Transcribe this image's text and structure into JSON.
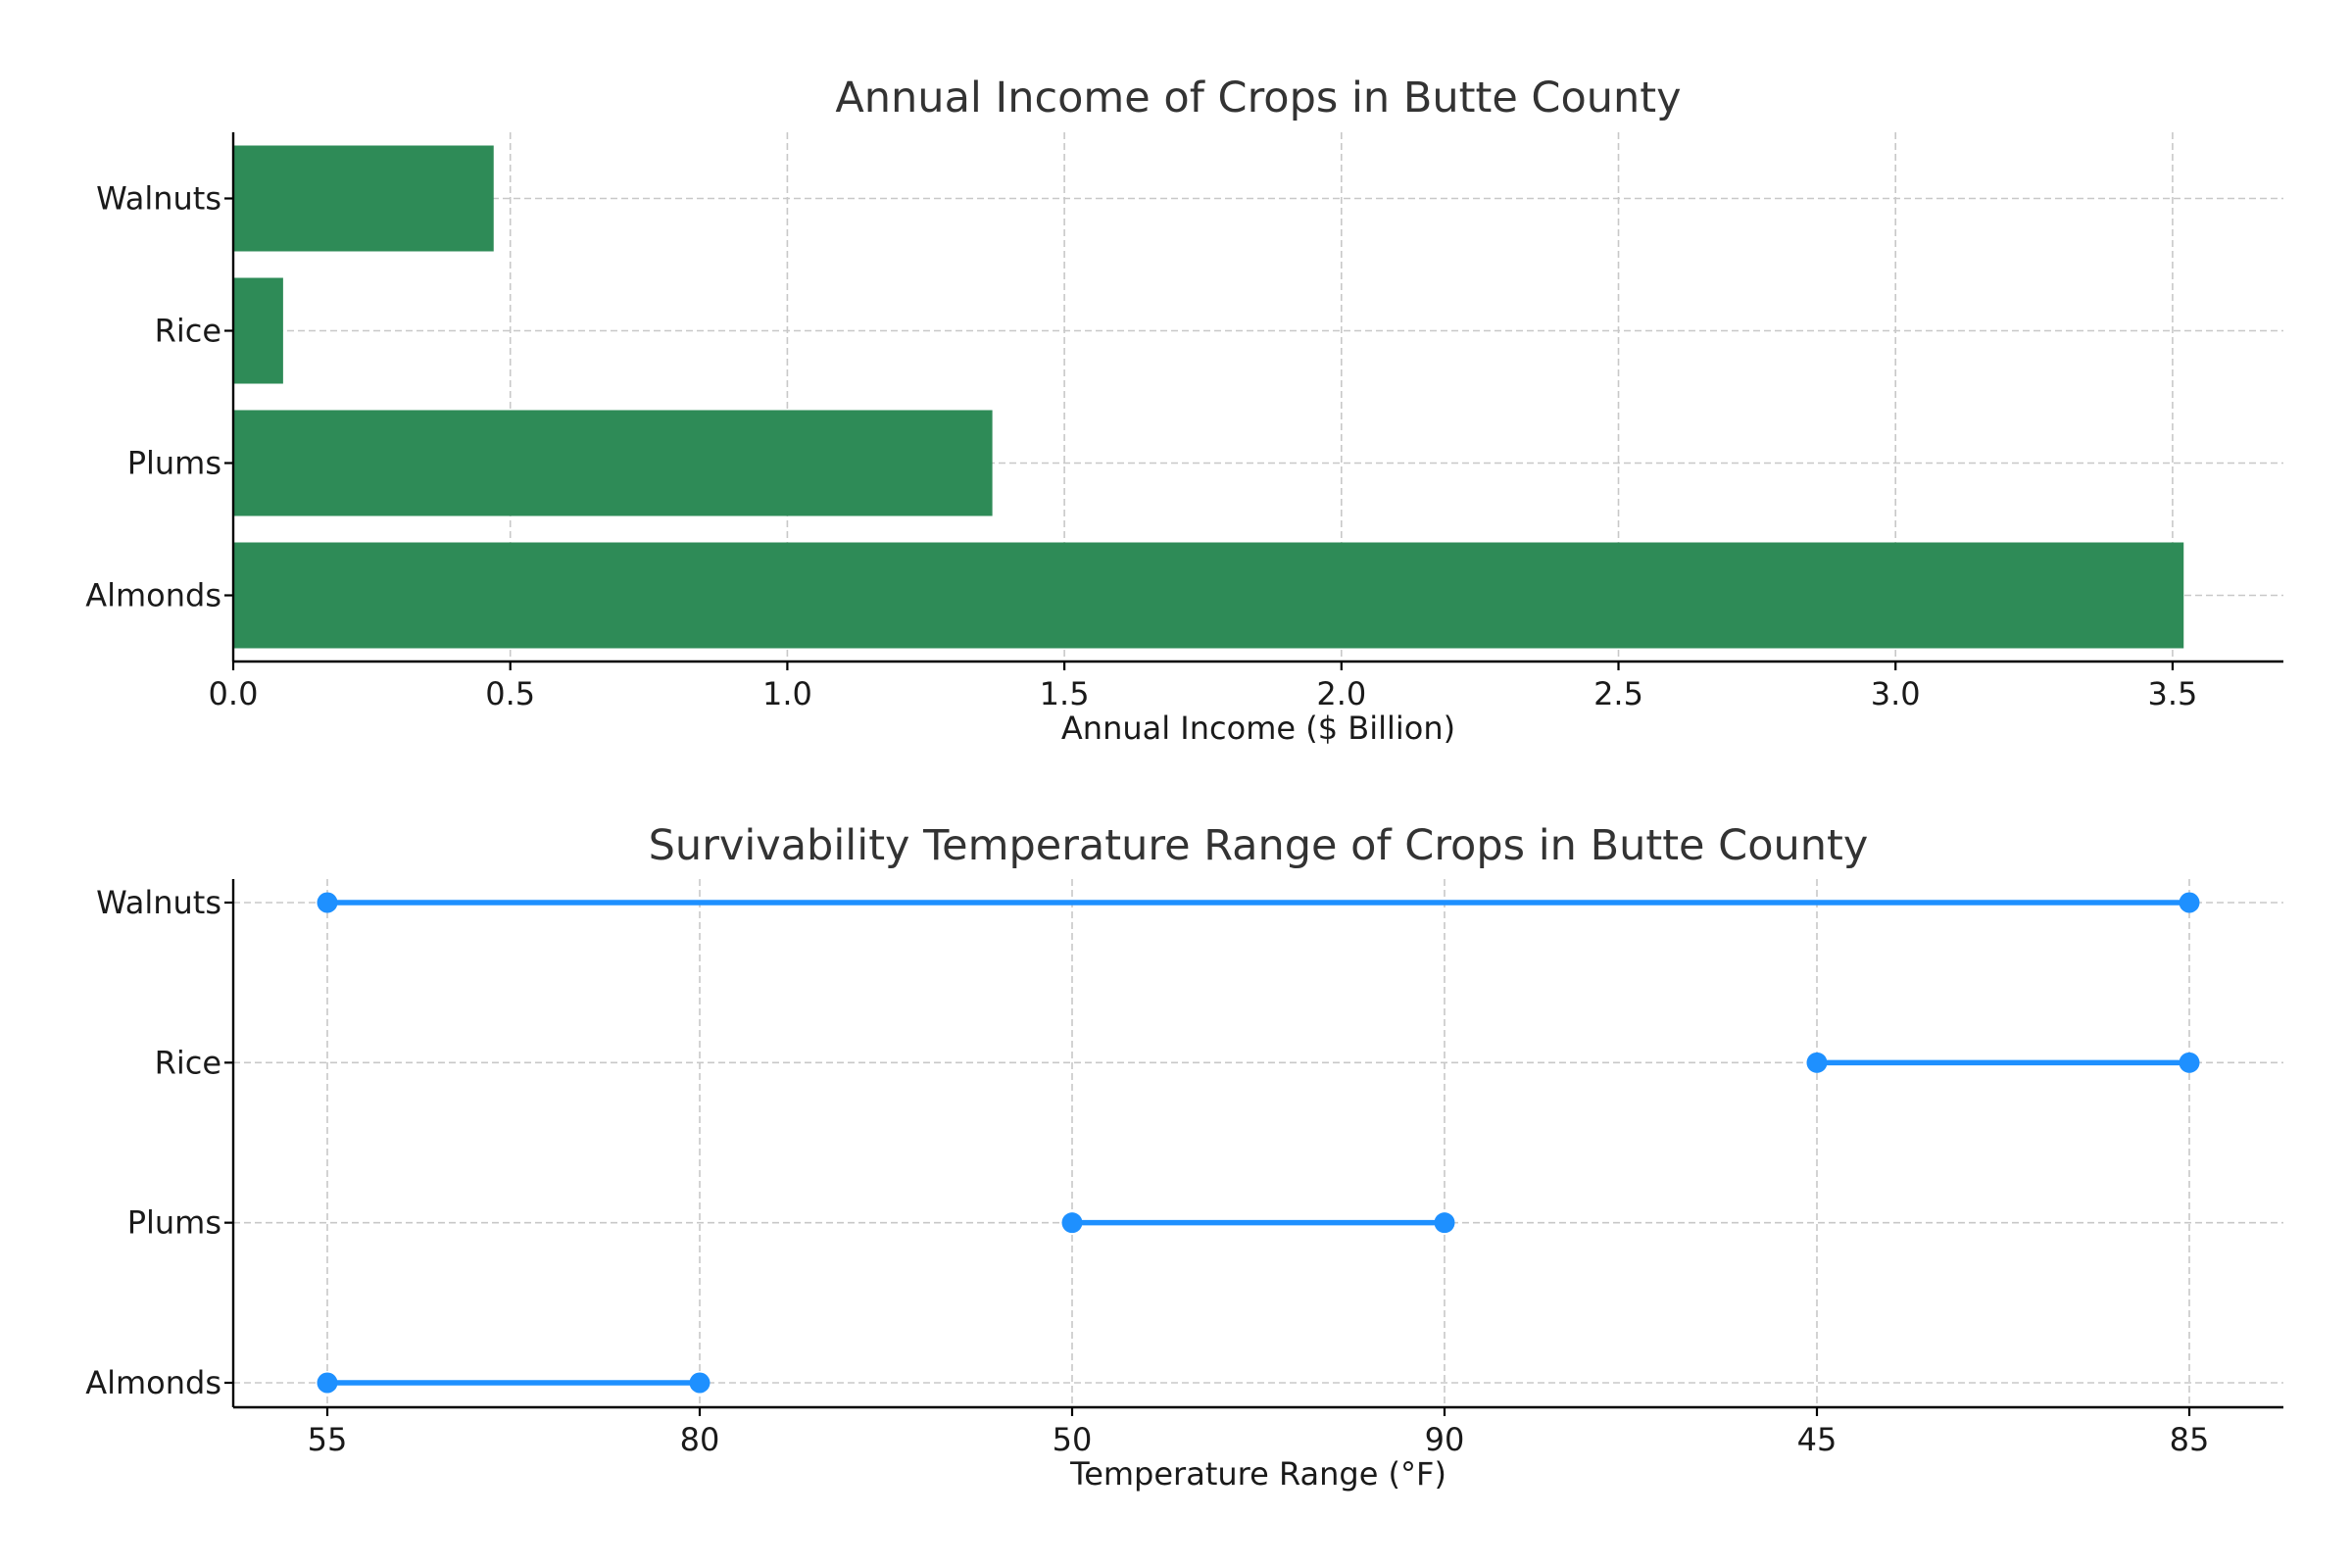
{
  "chart_data": [
    {
      "type": "bar",
      "orientation": "horizontal",
      "title": "Annual Income of Crops in Butte County",
      "xlabel": "Annual Income ($ Billion)",
      "ylabel": "",
      "categories": [
        "Almonds",
        "Plums",
        "Rice",
        "Walnuts"
      ],
      "values": [
        3.52,
        1.37,
        0.09,
        0.47
      ],
      "xlim": [
        0,
        3.7
      ],
      "xticks": [
        "0.0",
        "0.5",
        "1.0",
        "1.5",
        "2.0",
        "2.5",
        "3.0",
        "3.5"
      ],
      "grid": true,
      "color": "#2e8b57"
    },
    {
      "type": "line",
      "subtype": "range",
      "title": "Survivability Temperature Range of Crops in Butte County",
      "xlabel": "Temperature Range (°F)",
      "ylabel": "",
      "categories": [
        "Almonds",
        "Plums",
        "Rice",
        "Walnuts"
      ],
      "x_categories": [
        "55",
        "80",
        "50",
        "90",
        "45",
        "85"
      ],
      "ranges": [
        {
          "crop": "Almonds",
          "low": "55",
          "high": "80"
        },
        {
          "crop": "Plums",
          "low": "50",
          "high": "90"
        },
        {
          "crop": "Rice",
          "low": "45",
          "high": "85"
        },
        {
          "crop": "Walnuts",
          "low": "55",
          "high": "85"
        }
      ],
      "grid": true,
      "color": "#1e90ff"
    }
  ]
}
